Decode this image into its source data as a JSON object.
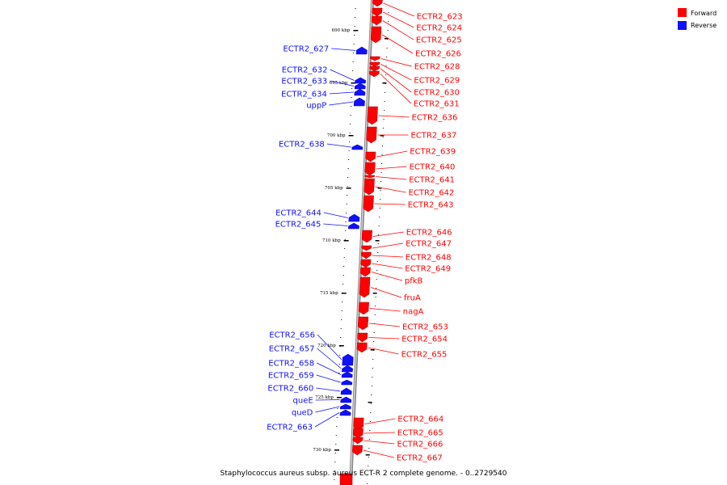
{
  "colors": {
    "forward": "#ff0000",
    "reverse": "#1010ff",
    "backbone": "#808080"
  },
  "legend": [
    {
      "label": "Forward",
      "color": "#ff0000"
    },
    {
      "label": "Reverse",
      "color": "#1010ff"
    }
  ],
  "caption": "Staphylococcus aureus subsp. aureus ECT-R 2 complete genome. - 0..2729540",
  "ticks": [
    "690 kbp",
    "695 kbp",
    "700 kbp",
    "705 kbp",
    "710 kbp",
    "715 kbp",
    "720 kbp",
    "725 kbp",
    "730 kbp"
  ],
  "forward_genes": [
    "ECTR2_623",
    "ECTR2_624",
    "ECTR2_625",
    "ECTR2_626",
    "ECTR2_628",
    "ECTR2_629",
    "ECTR2_630",
    "ECTR2_631",
    "ECTR2_636",
    "ECTR2_637",
    "ECTR2_639",
    "ECTR2_640",
    "ECTR2_641",
    "ECTR2_642",
    "ECTR2_643",
    "ECTR2_646",
    "ECTR2_647",
    "ECTR2_648",
    "ECTR2_649",
    "pfkB",
    "fruA",
    "nagA",
    "ECTR2_653",
    "ECTR2_654",
    "ECTR2_655",
    "ECTR2_664",
    "ECTR2_665",
    "ECTR2_666",
    "ECTR2_667"
  ],
  "reverse_genes": [
    "ECTR2_627",
    "ECTR2_632",
    "ECTR2_633",
    "ECTR2_634",
    "uppP",
    "ECTR2_638",
    "ECTR2_644",
    "ECTR2_645",
    "ECTR2_656",
    "ECTR2_657",
    "ECTR2_658",
    "ECTR2_659",
    "ECTR2_660",
    "queE",
    "queD",
    "ECTR2_663"
  ]
}
